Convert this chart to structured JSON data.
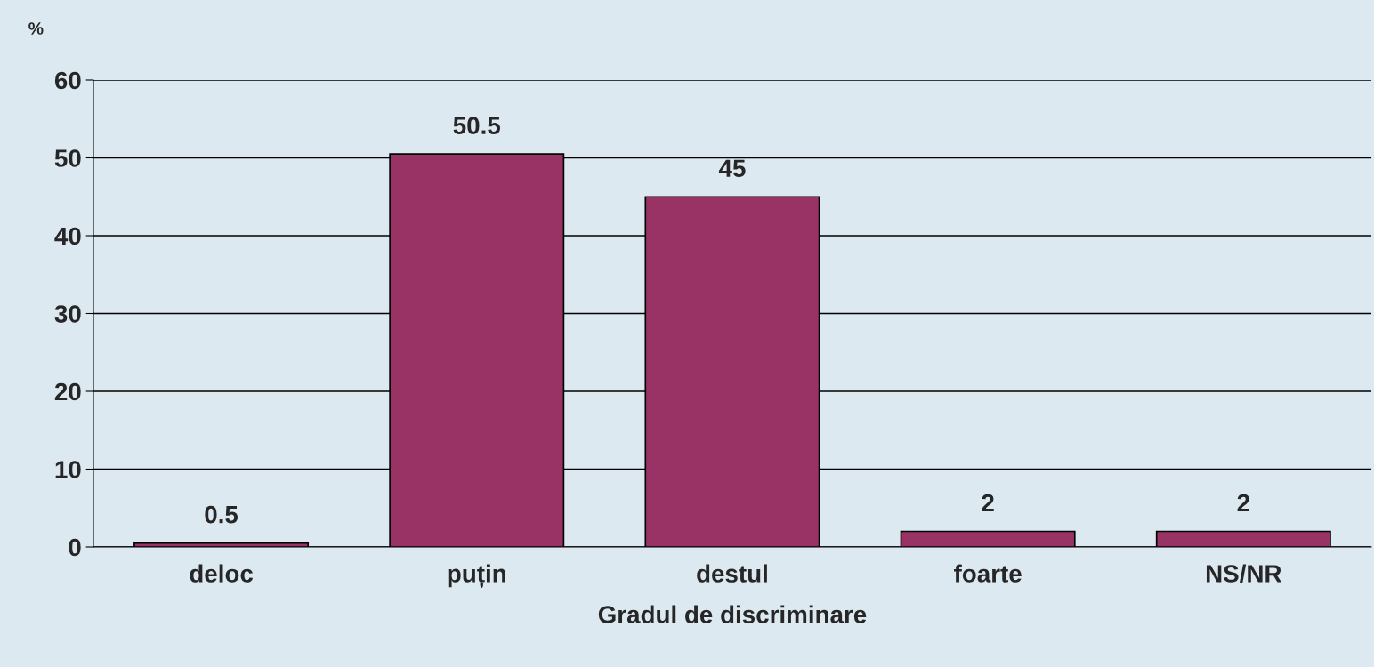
{
  "chart_data": {
    "type": "bar",
    "categories": [
      "deloc",
      "puțin",
      "destul",
      "foarte",
      "NS/NR"
    ],
    "values": [
      0.5,
      50.5,
      45,
      2,
      2
    ],
    "color": "#993366",
    "xlabel": "Gradul de discriminare",
    "ylabel": "%",
    "ylim": [
      0,
      60
    ],
    "yticks": [
      0,
      10,
      20,
      30,
      40,
      50,
      60
    ],
    "grid": "y",
    "data_labels": true
  }
}
